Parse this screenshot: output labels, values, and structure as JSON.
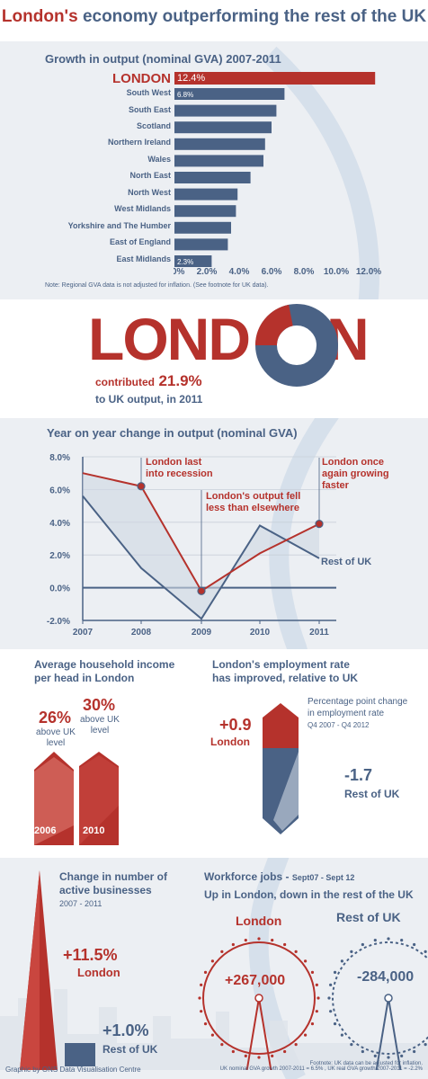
{
  "header": {
    "title_red": "London's",
    "title_rest": "economy outperforming the rest of the UK"
  },
  "gva_bars": {
    "title": "Growth in output (nominal GVA) 2007-2011",
    "note": "Note: Regional GVA data is not adjusted for inflation. (See footnote for UK data).",
    "label_first": "12.4%",
    "label_second": "6.8%",
    "label_last": "2.3%"
  },
  "london_share": {
    "word": "LONDON",
    "contributed": "contributed",
    "value": "21.9%",
    "tail": "to UK output, in 2011",
    "fraction": 0.219
  },
  "yoy": {
    "title": "Year on year change in output (nominal GVA)",
    "ann_recession": "London last into recession",
    "ann_fell_less": "London's output fell less than elsewhere",
    "ann_growing": "London once again growing faster",
    "rest_label": "Rest of UK"
  },
  "income": {
    "title_line1": "Average household income",
    "title_line2": "per head in London",
    "v2006": "26%",
    "v2010": "30%",
    "sub": "above UK level",
    "year1": "2006",
    "year2": "2010"
  },
  "employment": {
    "title_line1": "London's employment rate",
    "title_line2": "has improved, relative to UK",
    "desc_line1": "Percentage point change",
    "desc_line2": "in employment rate",
    "period": "Q4 2007 - Q4 2012",
    "london_value": "+0.9",
    "london_label": "London",
    "rest_value": "-1.7",
    "rest_label": "Rest of UK"
  },
  "businesses": {
    "title_line1": "Change in number of",
    "title_line2": "active businesses",
    "period": "2007 - 2011",
    "london_value": "+11.5%",
    "london_label": "London",
    "rest_value": "+1.0%",
    "rest_label": "Rest of UK"
  },
  "workforce": {
    "title_a": "Workforce jobs -",
    "title_b": "Sept07 - Sept 12",
    "subtitle": "Up in London, down in the rest of the UK",
    "london_label": "London",
    "london_value": "+267,000",
    "rest_label": "Rest of UK",
    "rest_value": "-284,000"
  },
  "footer": {
    "credit": "Graphic by ONS Data Visualisation Centre",
    "footnote_line1": "Footnote: UK data can be adjusted for inflation.",
    "footnote_line2": "UK nominal GVA growth 2007-2011 = 6.5% , UK real GVA growth 2007-2011 = -2.2%"
  },
  "colors": {
    "red": "#b5322c",
    "blue": "#4a6285",
    "light_blue": "#cfd7e2",
    "pale": "#eceff3"
  },
  "chart_data": [
    {
      "type": "bar",
      "orientation": "horizontal",
      "title": "Growth in output (nominal GVA) 2007-2011",
      "categories": [
        "LONDON",
        "South West",
        "South East",
        "Scotland",
        "Northern Ireland",
        "Wales",
        "North East",
        "North West",
        "West Midlands",
        "Yorkshire and The Humber",
        "East of England",
        "East Midlands"
      ],
      "values": [
        12.4,
        6.8,
        6.3,
        6.0,
        5.6,
        5.5,
        4.7,
        3.9,
        3.8,
        3.5,
        3.3,
        2.3
      ],
      "xlim": [
        0,
        12
      ],
      "xticks": [
        "0.0%",
        "2.0%",
        "4.0%",
        "6.0%",
        "8.0%",
        "10.0%",
        "12.0%"
      ]
    },
    {
      "type": "line",
      "title": "Year on year change in output (nominal GVA)",
      "x": [
        "2007",
        "2008",
        "2009",
        "2010",
        "2011"
      ],
      "series": [
        {
          "name": "London",
          "values": [
            7.0,
            6.2,
            -0.2,
            2.1,
            3.9
          ]
        },
        {
          "name": "Rest of UK",
          "values": [
            5.6,
            1.2,
            -1.9,
            3.8,
            1.8
          ]
        }
      ],
      "ylim": [
        -2,
        8
      ],
      "yticks": [
        "-2.0%",
        "0.0%",
        "2.0%",
        "4.0%",
        "6.0%",
        "8.0%"
      ]
    },
    {
      "type": "bar",
      "title": "London's employment rate has improved, relative to UK",
      "categories": [
        "London",
        "Rest of UK"
      ],
      "values": [
        0.9,
        -1.7
      ]
    },
    {
      "type": "bar",
      "title": "Change in number of active businesses",
      "categories": [
        "London",
        "Rest of UK"
      ],
      "values": [
        11.5,
        1.0
      ]
    }
  ]
}
